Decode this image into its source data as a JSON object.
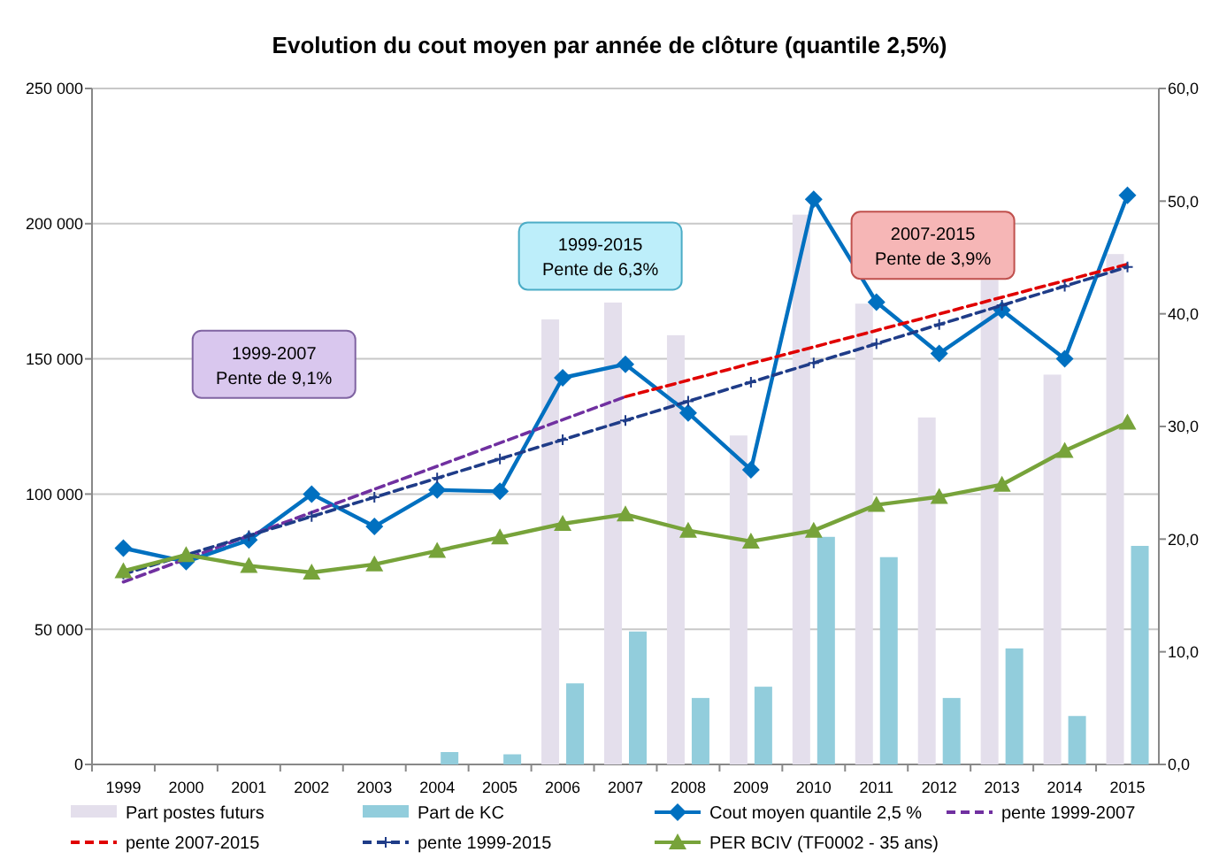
{
  "chart_data": {
    "type": "bar",
    "title": "Evolution du cout moyen par année de clôture (quantile 2,5%)",
    "categories": [
      "1999",
      "2000",
      "2001",
      "2002",
      "2003",
      "2004",
      "2005",
      "2006",
      "2007",
      "2008",
      "2009",
      "2010",
      "2011",
      "2012",
      "2013",
      "2014",
      "2015"
    ],
    "series": [
      {
        "name": "Part postes futurs",
        "axis": "y2",
        "color": "#e4dfec",
        "values": [
          null,
          null,
          null,
          null,
          null,
          null,
          null,
          39.5,
          41,
          38.1,
          29.2,
          48.8,
          40.9,
          30.8,
          43,
          34.6,
          45.3
        ]
      },
      {
        "name": "Part de KC",
        "axis": "y2",
        "color": "#92cddc",
        "values": [
          null,
          null,
          null,
          null,
          null,
          1.1,
          0.9,
          7.2,
          11.8,
          5.9,
          6.9,
          20.2,
          18.4,
          5.9,
          10.3,
          4.3,
          19.4
        ]
      },
      {
        "name": "Cout moyen quantile 2,5 %",
        "type": "line",
        "color": "#0070c0",
        "marker": "diamond",
        "line_style": "solid",
        "values": [
          80000,
          75000,
          83000,
          100000,
          88000,
          101500,
          101000,
          143000,
          148000,
          130000,
          109000,
          209000,
          171000,
          152000,
          168000,
          150000,
          210500
        ]
      },
      {
        "name": "pente 1999-2007",
        "type": "line",
        "color": "#7030a0",
        "marker": "none",
        "line_style": "dashed",
        "values": [
          67500,
          76000,
          84600,
          93200,
          101800,
          110300,
          118900,
          127500,
          136000,
          null,
          null,
          null,
          null,
          null,
          null,
          null,
          null
        ]
      },
      {
        "name": "pente 2007-2015",
        "type": "line",
        "color": "#e00000",
        "marker": "none",
        "line_style": "dashed",
        "values": [
          null,
          null,
          null,
          null,
          null,
          null,
          null,
          null,
          136000,
          142100,
          148300,
          154400,
          160500,
          166600,
          172800,
          178900,
          185000
        ]
      },
      {
        "name": "pente 1999-2015",
        "type": "line",
        "color": "#1f3c88",
        "marker": "cross",
        "line_style": "dashed",
        "values": [
          70400,
          77500,
          84600,
          91700,
          98800,
          105900,
          113000,
          120100,
          127200,
          134300,
          141400,
          148500,
          155600,
          162700,
          169800,
          176900,
          184000
        ]
      },
      {
        "name": "PER BCIV (TF0002 - 35 ans)",
        "type": "line",
        "color": "#77a33a",
        "marker": "triangle",
        "line_style": "solid",
        "values": [
          71500,
          77500,
          73500,
          71000,
          74000,
          79000,
          84000,
          89000,
          92500,
          86500,
          82500,
          86500,
          96000,
          99000,
          103500,
          116000,
          126500
        ]
      }
    ],
    "ylim": [
      0,
      250000
    ],
    "yticks": [
      {
        "value": 0,
        "label": "0"
      },
      {
        "value": 50000,
        "label": "50 000"
      },
      {
        "value": 100000,
        "label": "100 000"
      },
      {
        "value": 150000,
        "label": "150 000"
      },
      {
        "value": 200000,
        "label": "200 000"
      },
      {
        "value": 250000,
        "label": "250 000"
      }
    ],
    "y2lim": [
      0,
      60
    ],
    "y2ticks": [
      {
        "value": 0,
        "label": "0,0"
      },
      {
        "value": 10,
        "label": "10,0"
      },
      {
        "value": 20,
        "label": "20,0"
      },
      {
        "value": 30,
        "label": "30,0"
      },
      {
        "value": 40,
        "label": "40,0"
      },
      {
        "value": 50,
        "label": "50,0"
      },
      {
        "value": 60,
        "label": "60,0"
      }
    ],
    "grid": "y",
    "legend": "bottom",
    "annotations": [
      "1999-2007\nPente de 9,1%",
      "1999-2015\nPente de 6,3%",
      "2007-2015\nPente de 3,9%"
    ]
  }
}
